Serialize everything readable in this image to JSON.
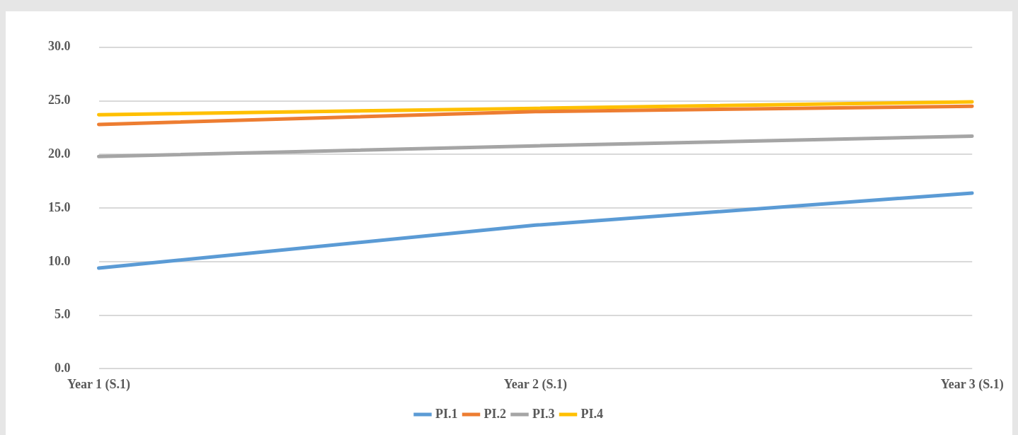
{
  "chart_data": {
    "type": "line",
    "categories": [
      "Year 1 (S.1)",
      "Year 2 (S.1)",
      "Year 3 (S.1)"
    ],
    "series": [
      {
        "name": "PI.1",
        "color": "#5b9bd5",
        "values": [
          9.4,
          13.4,
          16.4
        ]
      },
      {
        "name": "PI.2",
        "color": "#ed7d31",
        "values": [
          22.8,
          24.0,
          24.5
        ]
      },
      {
        "name": "PI.3",
        "color": "#a5a5a5",
        "values": [
          19.8,
          20.8,
          21.7
        ]
      },
      {
        "name": "PI.4",
        "color": "#ffc000",
        "values": [
          23.7,
          24.3,
          24.9
        ]
      }
    ],
    "ylim": [
      0,
      30
    ],
    "yticks": [
      {
        "value": 0,
        "label": "0.0"
      },
      {
        "value": 5,
        "label": "5.0"
      },
      {
        "value": 10,
        "label": "10.0"
      },
      {
        "value": 15,
        "label": "15.0"
      },
      {
        "value": 20,
        "label": "20.0"
      },
      {
        "value": 25,
        "label": "25.0"
      },
      {
        "value": 30,
        "label": "30.0"
      }
    ],
    "grid": "y",
    "legend": "bottom",
    "marker": "none",
    "line_style": "solid"
  }
}
